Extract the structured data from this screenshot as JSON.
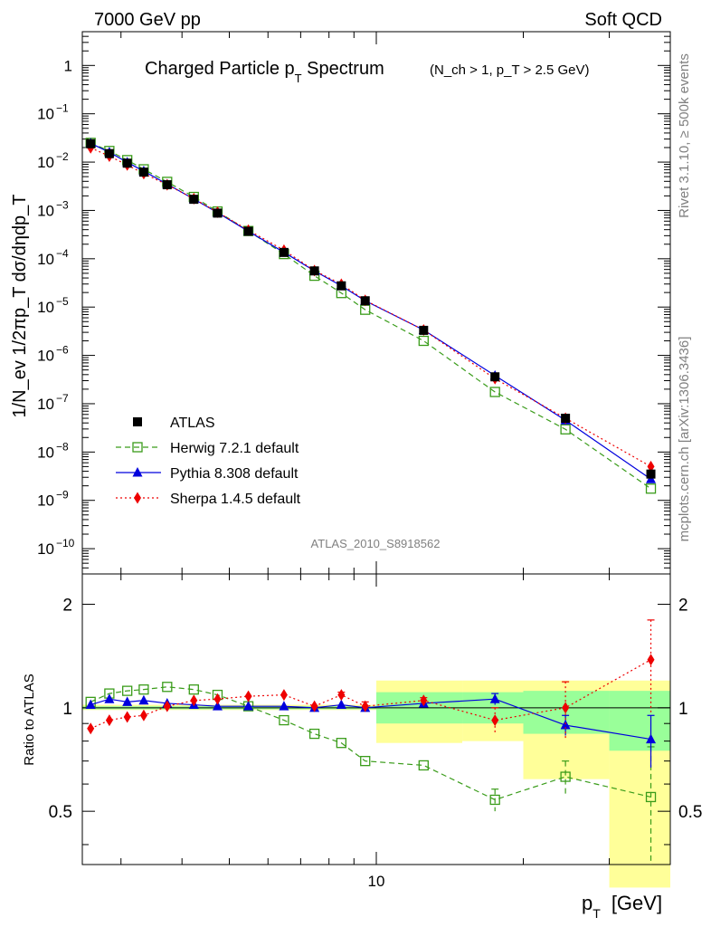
{
  "header": {
    "left": "7000 GeV pp",
    "right": "Soft QCD"
  },
  "side": {
    "rivet": "Rivet 3.1.10, ≥ 500k events",
    "mcplots": "mcplots.cern.ch [arXiv:1306.3436]"
  },
  "analysis_id": "ATLAS_2010_S8918562",
  "chart_data": [
    {
      "type": "line",
      "scale": "log-log",
      "title": "Charged Particle p_T Spectrum",
      "title_main": "Charged Particle p",
      "title_sub": "T",
      "title_tail": " Spectrum",
      "title_note": "(N_ch > 1, p_T > 2.5 GeV)",
      "ylabel": "1/N_ev 1/2πp_T dσ/dηdp_T",
      "ylim": [
        3e-11,
        5
      ],
      "ytick_labels": [
        {
          "base": "10",
          "exp": "−10",
          "v": 1e-10
        },
        {
          "base": "10",
          "exp": "−9",
          "v": 1e-09
        },
        {
          "base": "10",
          "exp": "−8",
          "v": 1e-08
        },
        {
          "base": "10",
          "exp": "−7",
          "v": 1e-07
        },
        {
          "base": "10",
          "exp": "−6",
          "v": 1e-06
        },
        {
          "base": "10",
          "exp": "−5",
          "v": 1e-05
        },
        {
          "base": "10",
          "exp": "−4",
          "v": 0.0001
        },
        {
          "base": "10",
          "exp": "−3",
          "v": 0.001
        },
        {
          "base": "10",
          "exp": "−2",
          "v": 0.01
        },
        {
          "base": "10",
          "exp": "−1",
          "v": 0.1
        },
        {
          "base": "1",
          "exp": "",
          "v": 1
        }
      ],
      "x": [
        2.6,
        2.84,
        3.09,
        3.34,
        3.73,
        4.23,
        4.73,
        5.47,
        6.47,
        7.47,
        8.48,
        9.49,
        12.5,
        17.5,
        24.4,
        36.5
      ],
      "series": [
        {
          "name": "ATLAS",
          "color": "#000000",
          "marker": "square",
          "values": [
            0.024,
            0.015,
            0.0095,
            0.0062,
            0.0034,
            0.0017,
            0.00088,
            0.00037,
            0.000135,
            5.6e-05,
            2.75e-05,
            1.35e-05,
            3.3e-06,
            3.6e-07,
            5e-08,
            3.5e-09
          ]
        },
        {
          "name": "Herwig 7.2.1 default",
          "color": "#3a9c1a",
          "marker": "open-square",
          "dash": "6,4",
          "values": [
            0.025,
            0.017,
            0.011,
            0.0071,
            0.0039,
            0.0019,
            0.00095,
            0.000375,
            0.000125,
            4.45e-05,
            1.95e-05,
            8.8e-06,
            2e-06,
            1.75e-07,
            2.95e-08,
            1.75e-09
          ]
        },
        {
          "name": "Pythia 8.308 default",
          "color": "#0000dd",
          "marker": "triangle",
          "values": [
            0.0245,
            0.016,
            0.0099,
            0.0065,
            0.0035,
            0.00172,
            0.0009,
            0.00037,
            0.000136,
            5.6e-05,
            2.75e-05,
            1.35e-05,
            3.36e-06,
            3.82e-07,
            4.55e-08,
            2.75e-09
          ]
        },
        {
          "name": "Sherpa 1.4.5 default",
          "color": "#ee0000",
          "marker": "diamond",
          "dash": "2,3",
          "values": [
            0.0198,
            0.0133,
            0.0087,
            0.0058,
            0.0034,
            0.00175,
            0.00092,
            0.00039,
            0.00015,
            5.7e-05,
            2.97e-05,
            1.38e-05,
            3.35e-06,
            3.3e-07,
            5e-08,
            5e-09
          ]
        }
      ],
      "legend_position": "lower-left"
    },
    {
      "type": "line",
      "scale": "log-log",
      "ylabel": "Ratio to ATLAS",
      "ylim": [
        0.35,
        2.45
      ],
      "ytick_labels": [
        "0.5",
        "1",
        "2"
      ],
      "ytick_values": [
        0.5,
        1,
        2
      ],
      "xlabel_main": "p",
      "xlabel_sub": "T",
      "xlabel_unit": "[GeV]",
      "xtick_labels": [
        "10"
      ],
      "xtick_values": [
        10
      ],
      "xlim": [
        2.5,
        40
      ],
      "bands": [
        {
          "x1": 2.5,
          "x2": 10,
          "inner": [
            0.99,
            1.01
          ],
          "outer": [
            0.985,
            1.02
          ]
        },
        {
          "x1": 10,
          "x2": 15,
          "inner": [
            0.9,
            1.11
          ],
          "outer": [
            0.79,
            1.2
          ]
        },
        {
          "x1": 15,
          "x2": 20,
          "inner": [
            0.9,
            1.11
          ],
          "outer": [
            0.8,
            1.2
          ]
        },
        {
          "x1": 20,
          "x2": 30,
          "inner": [
            0.84,
            1.12
          ],
          "outer": [
            0.62,
            1.2
          ]
        },
        {
          "x1": 30,
          "x2": 40,
          "inner": [
            0.75,
            1.12
          ],
          "outer": [
            0.3,
            1.2
          ]
        }
      ],
      "x": [
        2.6,
        2.84,
        3.09,
        3.34,
        3.73,
        4.23,
        4.73,
        5.47,
        6.47,
        7.47,
        8.48,
        9.49,
        12.5,
        17.5,
        24.4,
        36.5
      ],
      "series": [
        {
          "name": "Herwig 7.2.1 default",
          "color": "#3a9c1a",
          "values": [
            1.04,
            1.1,
            1.12,
            1.13,
            1.15,
            1.13,
            1.09,
            1.01,
            0.92,
            0.84,
            0.79,
            0.7,
            0.68,
            0.54,
            0.63,
            0.55
          ],
          "errors": [
            0,
            0,
            0,
            0,
            0,
            0,
            0,
            0,
            0,
            0,
            0,
            0,
            0,
            0.04,
            0.07,
            0.22
          ]
        },
        {
          "name": "Pythia 8.308 default",
          "color": "#0000dd",
          "values": [
            1.02,
            1.06,
            1.04,
            1.05,
            1.03,
            1.02,
            1.01,
            1.01,
            1.01,
            1.0,
            1.02,
            1.0,
            1.03,
            1.06,
            0.89,
            0.81
          ],
          "errors": [
            0,
            0,
            0,
            0,
            0,
            0,
            0,
            0,
            0,
            0,
            0,
            0,
            0,
            0.04,
            0.06,
            0.14
          ]
        },
        {
          "name": "Sherpa 1.4.5 default",
          "color": "#ee0000",
          "values": [
            0.87,
            0.92,
            0.94,
            0.95,
            1.01,
            1.05,
            1.06,
            1.08,
            1.09,
            1.01,
            1.09,
            1.01,
            1.05,
            0.92,
            1.0,
            1.38
          ],
          "errors": [
            0,
            0,
            0,
            0,
            0,
            0,
            0,
            0,
            0,
            0,
            0.02,
            0.03,
            0.02,
            0.08,
            0.19,
            0.42
          ]
        }
      ]
    }
  ]
}
